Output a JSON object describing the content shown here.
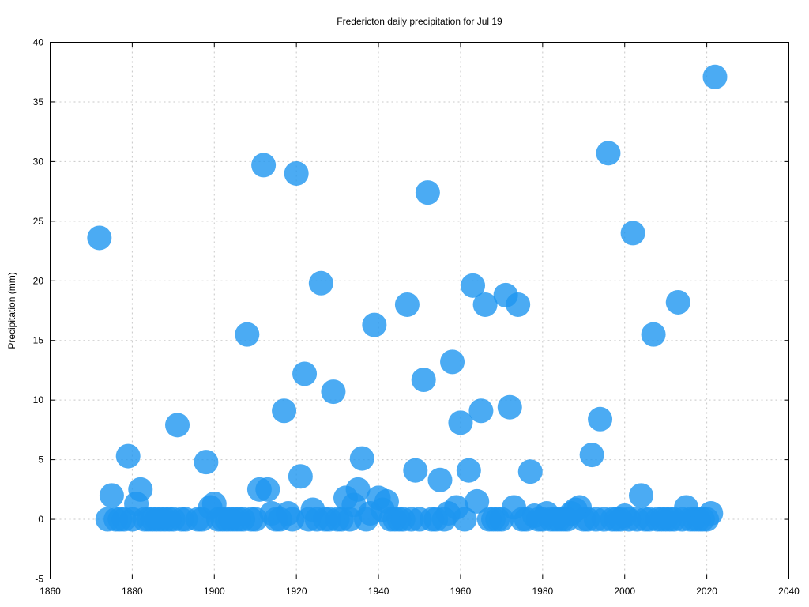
{
  "chart_data": {
    "type": "scatter",
    "title": "Fredericton daily precipitation for Jul 19",
    "xlabel": "",
    "ylabel": "Precipitation (mm)",
    "xlim": [
      1860,
      2040
    ],
    "ylim": [
      -5,
      40
    ],
    "xticks": [
      1860,
      1880,
      1900,
      1920,
      1940,
      1960,
      1980,
      2000,
      2020,
      2040
    ],
    "yticks": [
      -5,
      0,
      5,
      10,
      15,
      20,
      25,
      30,
      35,
      40
    ],
    "grid": true,
    "color": "#1e96f0",
    "series": [
      {
        "x": [
          1872,
          1874,
          1875,
          1876,
          1877,
          1878,
          1879,
          1880,
          1881,
          1882,
          1883,
          1884,
          1885,
          1886,
          1887,
          1888,
          1889,
          1890,
          1891,
          1892,
          1893,
          1896,
          1897,
          1898,
          1899,
          1900,
          1901,
          1902,
          1903,
          1904,
          1905,
          1906,
          1907,
          1908,
          1909,
          1910,
          1911,
          1912,
          1913,
          1914,
          1915,
          1916,
          1917,
          1918,
          1919,
          1920,
          1921,
          1922,
          1923,
          1924,
          1925,
          1926,
          1927,
          1928,
          1929,
          1930,
          1931,
          1932,
          1933,
          1934,
          1935,
          1936,
          1937,
          1938,
          1939,
          1940,
          1941,
          1942,
          1943,
          1944,
          1945,
          1946,
          1947,
          1948,
          1949,
          1950,
          1951,
          1952,
          1953,
          1954,
          1955,
          1956,
          1957,
          1958,
          1959,
          1960,
          1961,
          1962,
          1963,
          1964,
          1965,
          1966,
          1967,
          1968,
          1969,
          1970,
          1971,
          1972,
          1973,
          1974,
          1975,
          1976,
          1977,
          1978,
          1979,
          1980,
          1981,
          1982,
          1983,
          1984,
          1985,
          1986,
          1987,
          1988,
          1989,
          1990,
          1991,
          1992,
          1993,
          1994,
          1995,
          1996,
          1997,
          1998,
          1999,
          2000,
          2001,
          2002,
          2003,
          2004,
          2005,
          2006,
          2007,
          2008,
          2009,
          2010,
          2011,
          2012,
          2013,
          2014,
          2015,
          2016,
          2017,
          2018,
          2019,
          2020,
          2021,
          2022
        ],
        "y": [
          23.6,
          0,
          2,
          0,
          0,
          0,
          5.3,
          0,
          1.3,
          2.5,
          0,
          0,
          0,
          0,
          0,
          0,
          0,
          0,
          7.9,
          0,
          0,
          0,
          0,
          4.8,
          1,
          1.3,
          0,
          0,
          0,
          0,
          0,
          0,
          0,
          15.5,
          0,
          0,
          2.5,
          29.7,
          2.5,
          0.5,
          0,
          0,
          9.1,
          0.5,
          0,
          29,
          3.6,
          12.2,
          0,
          0.8,
          0,
          19.8,
          0,
          0,
          10.7,
          0,
          0,
          1.8,
          0,
          1.2,
          2.5,
          5.1,
          0,
          0.5,
          16.3,
          1.8,
          0.8,
          1.5,
          0,
          0,
          0,
          0,
          18,
          0,
          4.1,
          0,
          11.7,
          27.4,
          0,
          0,
          3.3,
          0,
          0.5,
          13.2,
          1,
          8.1,
          0,
          4.1,
          19.6,
          1.5,
          9.1,
          18,
          0,
          0,
          0,
          0,
          18.8,
          9.4,
          1,
          18,
          0,
          0,
          4,
          0.3,
          0,
          0,
          0.5,
          0,
          0,
          0,
          0,
          0,
          0.5,
          0.8,
          1,
          0,
          0,
          5.4,
          0,
          8.4,
          0,
          30.7,
          0,
          0,
          0,
          0.3,
          0,
          24,
          0,
          2,
          0,
          0,
          15.5,
          0,
          0,
          0,
          0,
          0,
          18.2,
          0,
          1,
          0,
          0,
          0,
          0,
          0,
          0.5,
          37.1
        ]
      }
    ]
  }
}
